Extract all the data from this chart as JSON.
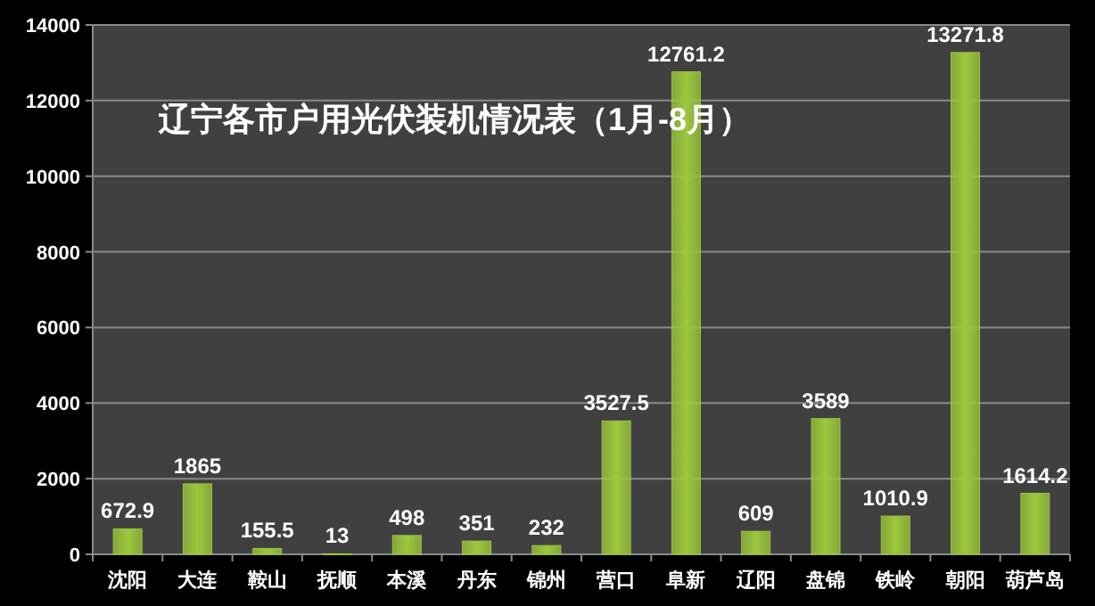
{
  "chart_data": {
    "type": "bar",
    "title": "辽宁各市户用光伏装机情况表（1月-8月）",
    "categories": [
      "沈阳",
      "大连",
      "鞍山",
      "抚顺",
      "本溪",
      "丹东",
      "锦州",
      "营口",
      "阜新",
      "辽阳",
      "盘锦",
      "铁岭",
      "朝阳",
      "葫芦岛"
    ],
    "values": [
      672.9,
      1865,
      155.5,
      13,
      498,
      351,
      232,
      3527.5,
      12761.2,
      609,
      3589,
      1010.9,
      13271.8,
      1614.2
    ],
    "color": "#9cc83c",
    "ylim": [
      0,
      14000
    ],
    "yticks": [
      0,
      2000,
      4000,
      6000,
      8000,
      10000,
      12000,
      14000
    ],
    "grid": "y",
    "data_labels": true
  }
}
